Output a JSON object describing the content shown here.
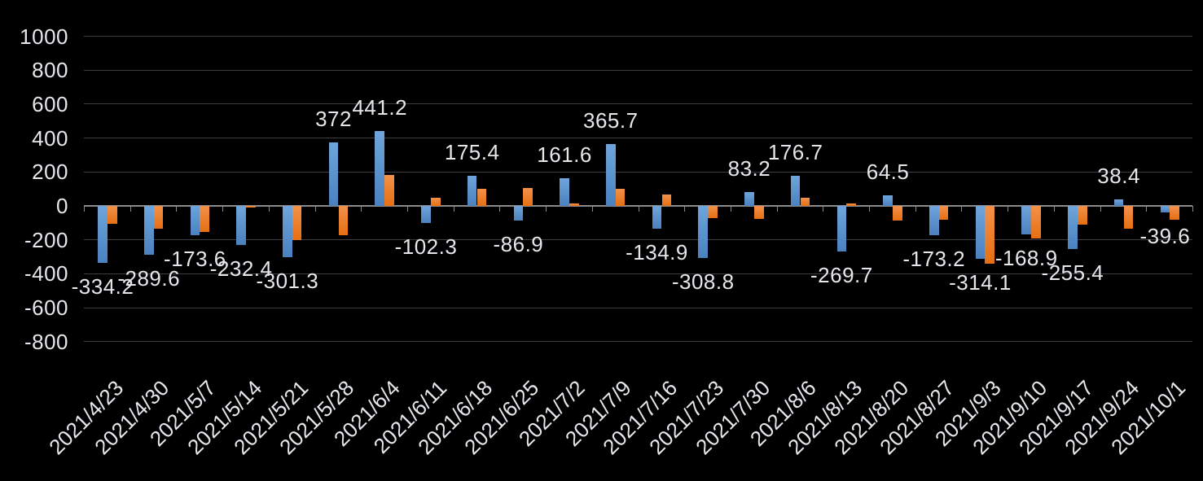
{
  "chart_data": {
    "type": "bar",
    "title": "",
    "xlabel": "",
    "ylabel": "",
    "categories": [
      "2021/4/23",
      "2021/4/30",
      "2021/5/7",
      "2021/5/14",
      "2021/5/21",
      "2021/5/28",
      "2021/6/4",
      "2021/6/11",
      "2021/6/18",
      "2021/6/25",
      "2021/7/2",
      "2021/7/9",
      "2021/7/16",
      "2021/7/23",
      "2021/7/30",
      "2021/8/6",
      "2021/8/13",
      "2021/8/20",
      "2021/8/27",
      "2021/9/3",
      "2021/9/10",
      "2021/9/17",
      "2021/9/24",
      "2021/10/1"
    ],
    "series": [
      {
        "name": "series-1-blue",
        "color": "#5B9BD5",
        "color_top": "#6FA5DB",
        "color_bottom": "#4A81BF",
        "values": [
          -334.2,
          -289.6,
          -173.6,
          -232.4,
          -301.3,
          372,
          441.2,
          -102.3,
          175.4,
          -86.9,
          161.6,
          365.7,
          -134.9,
          -308.8,
          83.2,
          176.7,
          -269.7,
          64.5,
          -173.2,
          -314.1,
          -168.9,
          -255.4,
          38.4,
          -39.6
        ],
        "data_labels": [
          "-334.2",
          "-289.6",
          "-173.6",
          "-232.4",
          "-301.3",
          "372",
          "441.2",
          "-102.3",
          "175.4",
          "-86.9",
          "161.6",
          "365.7",
          "-134.9",
          "-308.8",
          "83.2",
          "176.7",
          "-269.7",
          "64.5",
          "-173.2",
          "-314.1",
          "-168.9",
          "-255.4",
          "38.4",
          "-39.6"
        ]
      },
      {
        "name": "series-2-orange",
        "color": "#ED7D31",
        "color_top": "#F2914B",
        "color_bottom": "#E66F12",
        "values": [
          -105,
          -135,
          -155,
          -11,
          -200,
          -173,
          183,
          50,
          103,
          105,
          13,
          100,
          65,
          -70,
          -75,
          47,
          16,
          -88,
          -80,
          -340,
          -190,
          -110,
          -135,
          -80
        ]
      }
    ],
    "yticks": [
      1000,
      800,
      600,
      400,
      200,
      0,
      -200,
      -400,
      -600,
      -800
    ],
    "ylim": [
      -800,
      1000
    ],
    "grid": true,
    "legend_position": "none",
    "background": "#000000",
    "text_color": "#E4E7EB",
    "gridline_color": "#3D3D3D",
    "axis_color": "#8A8A8A"
  }
}
